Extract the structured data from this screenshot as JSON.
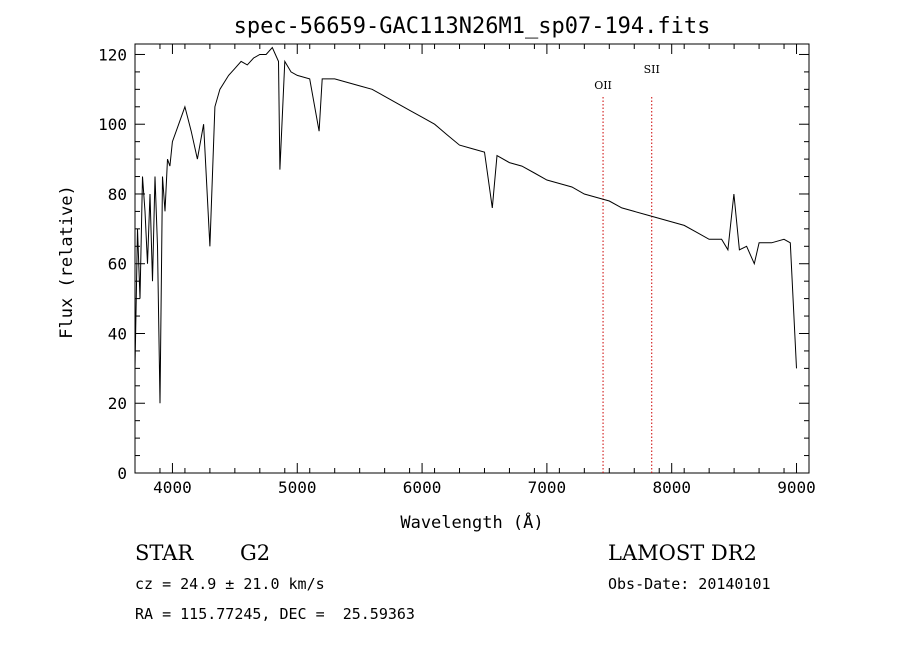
{
  "chart_data": {
    "type": "line",
    "title": "spec-56659-GAC113N26M1_sp07-194.fits",
    "xlabel": "Wavelength (Å)",
    "ylabel": "Flux (relative)",
    "xlim": [
      3700,
      9100
    ],
    "ylim": [
      0,
      123
    ],
    "x_ticks": [
      4000,
      5000,
      6000,
      7000,
      8000,
      9000
    ],
    "y_ticks": [
      0,
      20,
      40,
      60,
      80,
      100,
      120
    ],
    "line_color": "#000000",
    "marker_color": "#cc0000",
    "series": [
      {
        "x": [
          3700,
          3720,
          3740,
          3760,
          3780,
          3800,
          3820,
          3840,
          3860,
          3880,
          3900,
          3920,
          3940,
          3960,
          3980,
          4000,
          4050,
          4100,
          4150,
          4200,
          4250,
          4300,
          4340,
          4380,
          4450,
          4500,
          4550,
          4600,
          4650,
          4700,
          4750,
          4800,
          4850,
          4861,
          4900,
          4950,
          5000,
          5100,
          5175,
          5200,
          5300,
          5400,
          5500,
          5600,
          5700,
          5800,
          5900,
          6000,
          6100,
          6200,
          6300,
          6400,
          6500,
          6563,
          6600,
          6700,
          6800,
          6900,
          7000,
          7100,
          7200,
          7300,
          7400,
          7500,
          7600,
          7700,
          7800,
          7900,
          8000,
          8100,
          8200,
          8300,
          8400,
          8450,
          8498,
          8542,
          8600,
          8662,
          8700,
          8800,
          8900,
          8950,
          9000
        ],
        "values": [
          30,
          70,
          50,
          85,
          75,
          60,
          80,
          55,
          85,
          65,
          20,
          85,
          75,
          90,
          88,
          95,
          100,
          105,
          98,
          90,
          100,
          65,
          105,
          110,
          114,
          116,
          118,
          117,
          119,
          120,
          120,
          122,
          118,
          87,
          118,
          115,
          114,
          113,
          98,
          113,
          113,
          112,
          111,
          110,
          108,
          106,
          104,
          102,
          100,
          97,
          94,
          93,
          92,
          76,
          91,
          89,
          88,
          86,
          84,
          83,
          82,
          80,
          79,
          78,
          76,
          75,
          74,
          73,
          72,
          71,
          69,
          67,
          67,
          64,
          80,
          64,
          65,
          60,
          66,
          66,
          67,
          66,
          30
        ]
      }
    ],
    "line_markers": [
      {
        "label": "OII",
        "x": 7450
      },
      {
        "label": "SII",
        "x": 7840
      }
    ]
  },
  "info": {
    "class_label": "STAR",
    "subclass_label": "G2",
    "survey": "LAMOST DR2",
    "cz": "cz = 24.9 ± 21.0 km/s",
    "obs_date": "Obs-Date: 20140101",
    "coords": "RA = 115.77245, DEC =  25.59363"
  }
}
